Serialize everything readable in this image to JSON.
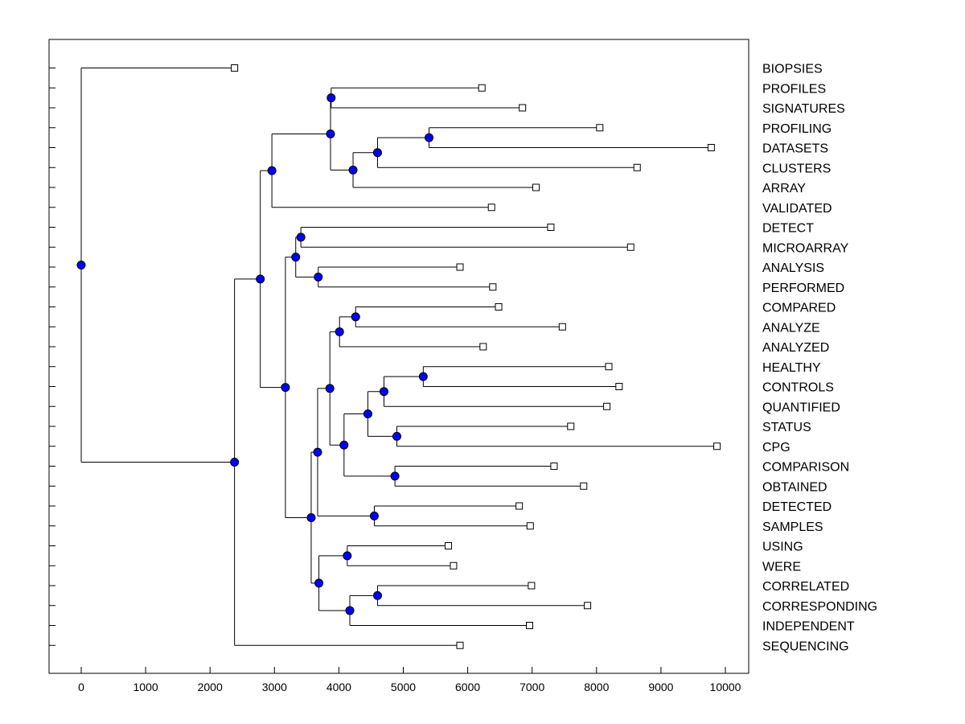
{
  "chart_data": {
    "type": "dendrogram",
    "title": "",
    "xlabel": "",
    "ylabel": "",
    "xlim": [
      -500,
      10300
    ],
    "xticks": [
      0,
      1000,
      2000,
      3000,
      4000,
      5000,
      6000,
      7000,
      8000,
      9000,
      10000
    ],
    "leaves": [
      {
        "label": "BIOPSIES",
        "value": 2380
      },
      {
        "label": "PROFILES",
        "value": 6220
      },
      {
        "label": "SIGNATURES",
        "value": 6850
      },
      {
        "label": "PROFILING",
        "value": 8050
      },
      {
        "label": "DATASETS",
        "value": 9780
      },
      {
        "label": "CLUSTERS",
        "value": 8630
      },
      {
        "label": "ARRAY",
        "value": 7060
      },
      {
        "label": "VALIDATED",
        "value": 6370
      },
      {
        "label": "DETECT",
        "value": 7290
      },
      {
        "label": "MICROARRAY",
        "value": 8530
      },
      {
        "label": "ANALYSIS",
        "value": 5880
      },
      {
        "label": "PERFORMED",
        "value": 6390
      },
      {
        "label": "COMPARED",
        "value": 6480
      },
      {
        "label": "ANALYZE",
        "value": 7470
      },
      {
        "label": "ANALYZED",
        "value": 6240
      },
      {
        "label": "HEALTHY",
        "value": 8190
      },
      {
        "label": "CONTROLS",
        "value": 8350
      },
      {
        "label": "QUANTIFIED",
        "value": 8160
      },
      {
        "label": "STATUS",
        "value": 7600
      },
      {
        "label": "CPG",
        "value": 9870
      },
      {
        "label": "COMPARISON",
        "value": 7340
      },
      {
        "label": "OBTAINED",
        "value": 7800
      },
      {
        "label": "DETECTED",
        "value": 6800
      },
      {
        "label": "SAMPLES",
        "value": 6970
      },
      {
        "label": "USING",
        "value": 5700
      },
      {
        "label": "WERE",
        "value": 5780
      },
      {
        "label": "CORRELATED",
        "value": 6990
      },
      {
        "label": "CORRESPONDING",
        "value": 7860
      },
      {
        "label": "INDEPENDENT",
        "value": 6960
      },
      {
        "label": "SEQUENCING",
        "value": 5880
      }
    ],
    "merges": [
      {
        "id": "n1",
        "value": 3880,
        "children": [
          "PROFILES",
          "SIGNATURES"
        ]
      },
      {
        "id": "n2",
        "value": 5400,
        "children": [
          "PROFILING",
          "DATASETS"
        ]
      },
      {
        "id": "n3",
        "value": 4600,
        "children": [
          "n2",
          "CLUSTERS"
        ]
      },
      {
        "id": "n4",
        "value": 4220,
        "children": [
          "n3",
          "ARRAY"
        ]
      },
      {
        "id": "n5",
        "value": 3870,
        "children": [
          "n1",
          "n4"
        ]
      },
      {
        "id": "n6",
        "value": 2960,
        "children": [
          "n5",
          "VALIDATED"
        ]
      },
      {
        "id": "n7",
        "value": 3410,
        "children": [
          "DETECT",
          "MICROARRAY"
        ]
      },
      {
        "id": "n8",
        "value": 3680,
        "children": [
          "ANALYSIS",
          "PERFORMED"
        ]
      },
      {
        "id": "n9",
        "value": 3330,
        "children": [
          "n7",
          "n8"
        ]
      },
      {
        "id": "n10",
        "value": 4260,
        "children": [
          "COMPARED",
          "ANALYZE"
        ]
      },
      {
        "id": "n11",
        "value": 4010,
        "children": [
          "n10",
          "ANALYZED"
        ]
      },
      {
        "id": "n12",
        "value": 5310,
        "children": [
          "HEALTHY",
          "CONTROLS"
        ]
      },
      {
        "id": "n13",
        "value": 4700,
        "children": [
          "n12",
          "QUANTIFIED"
        ]
      },
      {
        "id": "n14",
        "value": 4900,
        "children": [
          "STATUS",
          "CPG"
        ]
      },
      {
        "id": "n15",
        "value": 4450,
        "children": [
          "n13",
          "n14"
        ]
      },
      {
        "id": "n16",
        "value": 4870,
        "children": [
          "COMPARISON",
          "OBTAINED"
        ]
      },
      {
        "id": "n17",
        "value": 4080,
        "children": [
          "n15",
          "n16"
        ]
      },
      {
        "id": "n18",
        "value": 3860,
        "children": [
          "n11",
          "n17"
        ]
      },
      {
        "id": "n19",
        "value": 4550,
        "children": [
          "DETECTED",
          "SAMPLES"
        ]
      },
      {
        "id": "n20",
        "value": 3670,
        "children": [
          "n18",
          "n19"
        ]
      },
      {
        "id": "n21",
        "value": 4130,
        "children": [
          "USING",
          "WERE"
        ]
      },
      {
        "id": "n22",
        "value": 4600,
        "children": [
          "CORRELATED",
          "CORRESPONDING"
        ]
      },
      {
        "id": "n23",
        "value": 4170,
        "children": [
          "n22",
          "INDEPENDENT"
        ]
      },
      {
        "id": "n24",
        "value": 3690,
        "children": [
          "n21",
          "n23"
        ]
      },
      {
        "id": "n25",
        "value": 3570,
        "children": [
          "n20",
          "n24"
        ]
      },
      {
        "id": "n26",
        "value": 3170,
        "children": [
          "n9",
          "n25"
        ]
      },
      {
        "id": "n27",
        "value": 2780,
        "children": [
          "n6",
          "n26"
        ]
      },
      {
        "id": "n28",
        "value": 2380,
        "children": [
          "n27",
          "SEQUENCING"
        ]
      },
      {
        "id": "n29",
        "value": 0,
        "children": [
          "BIOPSIES",
          "n28"
        ]
      }
    ],
    "colors": {
      "node_fill": "#0000ff",
      "leaf_fill": "#ffffff",
      "line": "#000000",
      "frame": "#000000"
    }
  }
}
